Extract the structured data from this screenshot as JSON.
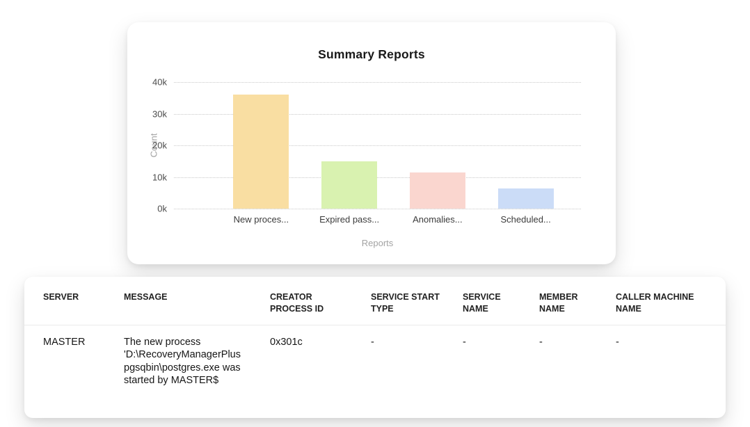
{
  "chart_data": {
    "type": "bar",
    "title": "Summary Reports",
    "xlabel": "Reports",
    "ylabel": "Count",
    "categories": [
      "New proces...",
      "Expired pass...",
      "Anomalies...",
      "Scheduled..."
    ],
    "values": [
      36000,
      15000,
      11500,
      6300
    ],
    "colors": [
      "#F9DEA2",
      "#D9F2B0",
      "#FAD6CF",
      "#CBDCF7"
    ],
    "ylim": [
      0,
      40000
    ],
    "yticks": [
      "40k",
      "30k",
      "20k",
      "10k",
      "0k"
    ],
    "grid": "dotted-horizontal",
    "legend": "none"
  },
  "table": {
    "columns": [
      "SERVER",
      "MESSAGE",
      "CREATOR PROCESS ID",
      "SERVICE START TYPE",
      "SERVICE NAME",
      "MEMBER NAME",
      "CALLER MACHINE NAME"
    ],
    "rows": [
      [
        "MASTER",
        "The new process 'D:\\RecoveryManagerPluspgsqbin\\postgres.exe was started by MASTER$",
        "0x301c",
        "-",
        "-",
        "-",
        "-"
      ]
    ]
  }
}
